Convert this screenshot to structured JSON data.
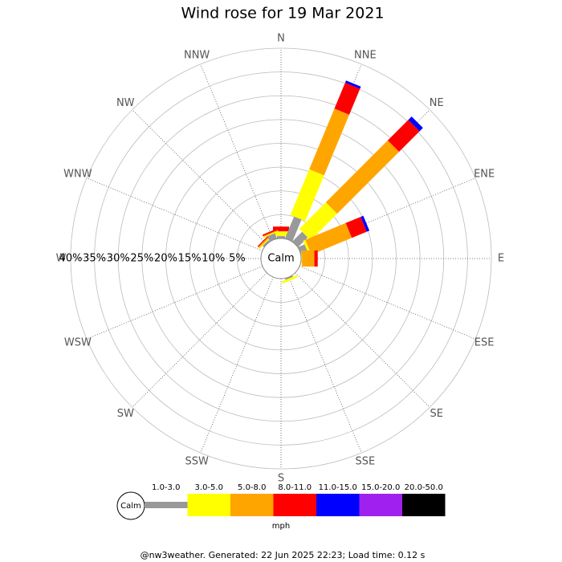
{
  "chart_data": {
    "type": "wind_rose",
    "title": "Wind rose for 19 Mar 2021",
    "directions": [
      "N",
      "NNE",
      "NE",
      "ENE",
      "E",
      "ESE",
      "SE",
      "SSE",
      "S",
      "SSW",
      "SW",
      "WSW",
      "W",
      "WNW",
      "NW",
      "NNW"
    ],
    "calm_label": "Calm",
    "units": "mph",
    "rlim": [
      0,
      40
    ],
    "rticks": [
      {
        "value": 40,
        "label": "40%"
      },
      {
        "value": 35,
        "label": "35%"
      },
      {
        "value": 30,
        "label": "30%"
      },
      {
        "value": 25,
        "label": "25%"
      },
      {
        "value": 20,
        "label": "20%"
      },
      {
        "value": 15,
        "label": "15%"
      },
      {
        "value": 10,
        "label": "10%"
      },
      {
        "value": 5,
        "label": "5%"
      }
    ],
    "series": [
      {
        "name": "1.0-3.0",
        "color": "#999999",
        "values": [
          0.5,
          5.0,
          2.9,
          1.5,
          0.1,
          0,
          0,
          0.3,
          0,
          0,
          0,
          0,
          0,
          0,
          0.4,
          1.2
        ]
      },
      {
        "name": "3.0-5.0",
        "color": "#ffff00",
        "values": [
          1.0,
          10.4,
          7.9,
          0.5,
          0.1,
          0,
          0,
          0.5,
          0,
          0,
          0,
          0,
          0,
          0,
          0.2,
          0.2
        ]
      },
      {
        "name": "5.0-8.0",
        "color": "#ffa500",
        "values": [
          0,
          13.8,
          18.4,
          9.2,
          2.6,
          0,
          0,
          0,
          0,
          0,
          0,
          0,
          0,
          0,
          0.3,
          0.2
        ]
      },
      {
        "name": "8.0-11.0",
        "color": "#ff0000",
        "values": [
          1.0,
          5.9,
          6.1,
          3.4,
          0.7,
          0,
          0,
          0,
          0,
          0,
          0,
          0,
          0,
          0,
          0.2,
          0.3
        ]
      },
      {
        "name": "11.0-15.0",
        "color": "#0000ff",
        "values": [
          0,
          0.5,
          1.0,
          0.6,
          0,
          0,
          0,
          0,
          0,
          0,
          0,
          0,
          0,
          0,
          0,
          0
        ]
      },
      {
        "name": "15.0-20.0",
        "color": "#a020f0",
        "values": [
          0,
          0,
          0,
          0,
          0,
          0,
          0,
          0,
          0,
          0,
          0,
          0,
          0,
          0,
          0,
          0
        ]
      },
      {
        "name": "20.0-50.0",
        "color": "#000000",
        "values": [
          0,
          0,
          0,
          0,
          0,
          0,
          0,
          0,
          0,
          0,
          0,
          0,
          0,
          0,
          0,
          0
        ]
      }
    ],
    "footer": "@nw3weather. Generated: 22 Jun 2025 22:23; Load time: 0.12 s"
  }
}
